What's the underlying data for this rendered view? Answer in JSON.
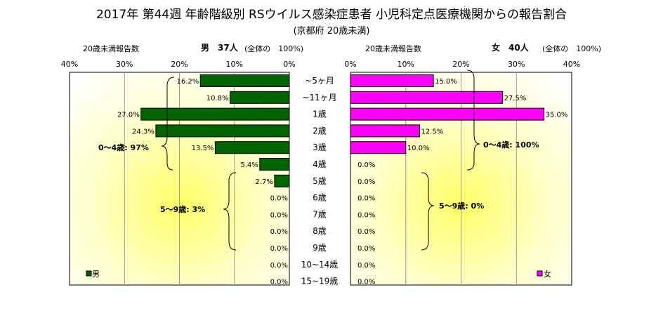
{
  "title": "2017年 第44週 年齢階級別 RSウイルス感染症患者 小児科定点医療機関からの報告割合",
  "subtitle": "(京都府 20歳未満)",
  "colors": {
    "male": "#006400",
    "female": "#ff00ff",
    "outline": "#000000"
  },
  "chart_data": {
    "type": "bar",
    "categories": [
      "~5ヶ月",
      "~11ヶ月",
      "1歳",
      "2歳",
      "3歳",
      "4歳",
      "5歳",
      "6歳",
      "7歳",
      "8歳",
      "9歳",
      "10~14歳",
      "15~19歳"
    ],
    "male": {
      "header_count_label": "20歳未満報告数",
      "header_title": "男　37人",
      "header_note": "(全体の　100%)",
      "legend": "男",
      "values": [
        16.2,
        10.8,
        27.0,
        24.3,
        13.5,
        5.4,
        2.7,
        0.0,
        0.0,
        0.0,
        0.0,
        0.0,
        0.0
      ],
      "value_labels": [
        "16.2%",
        "10.8%",
        "27.0%",
        "24.3%",
        "13.5%",
        "5.4%",
        "2.7%",
        "0.0%",
        "0.0%",
        "0.0%",
        "0.0%",
        "0.0%",
        "0.0%"
      ],
      "ticks": [
        "40%",
        "30%",
        "20%",
        "10%",
        "0%"
      ],
      "xlim": [
        0,
        40
      ],
      "groups": [
        "0～4歳: 97%",
        "5～9歳: 3%"
      ]
    },
    "female": {
      "header_count_label": "20歳未満報告数",
      "header_title": "女　40人",
      "header_note": "(全体の　100%)",
      "legend": "女",
      "values": [
        15.0,
        27.5,
        35.0,
        12.5,
        10.0,
        0.0,
        0.0,
        0.0,
        0.0,
        0.0,
        0.0,
        0.0,
        0.0
      ],
      "value_labels": [
        "15.0%",
        "27.5%",
        "35.0%",
        "12.5%",
        "10.0%",
        "0.0%",
        "0.0%",
        "0.0%",
        "0.0%",
        "0.0%",
        "0.0%",
        "0.0%",
        "0.0%"
      ],
      "ticks": [
        "0%",
        "10%",
        "20%",
        "30%",
        "40%"
      ],
      "xlim": [
        0,
        40
      ],
      "groups": [
        "0～4歳: 100%",
        "5～9歳: 0%"
      ]
    },
    "grid": true
  }
}
